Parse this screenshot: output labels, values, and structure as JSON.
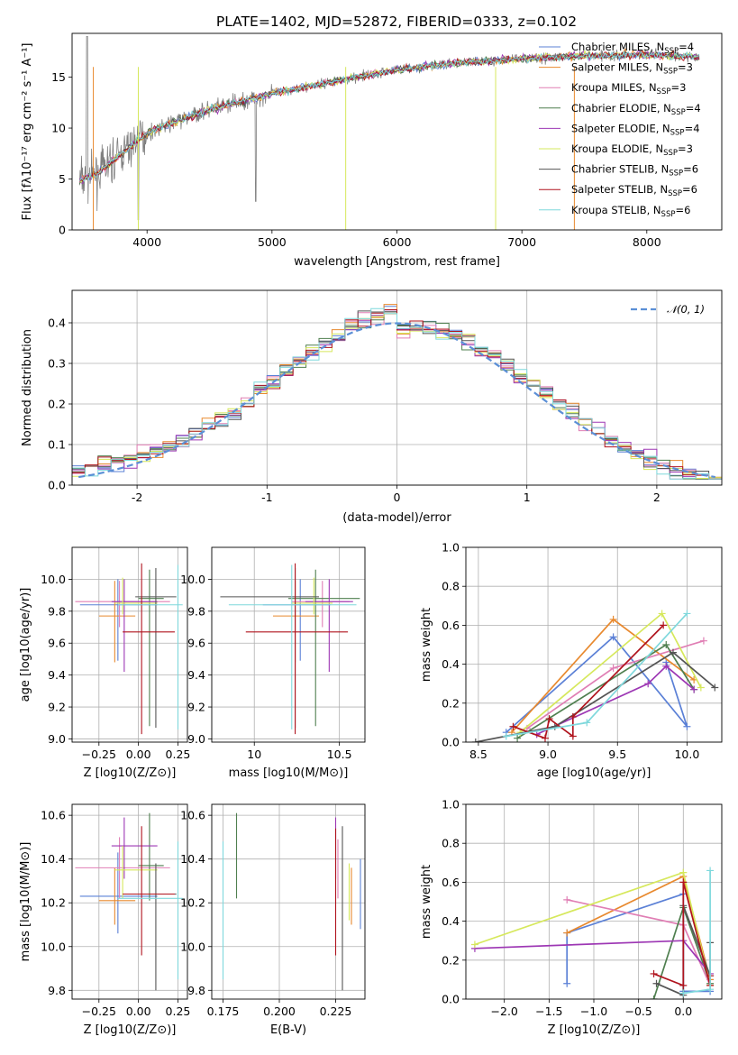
{
  "figure": {
    "title": "PLATE=1402, MJD=52872, FIBERID=0333, z=0.102"
  },
  "models": [
    {
      "name": "Chabrier MILES",
      "nssp": "4",
      "color": "#5b80d6"
    },
    {
      "name": "Salpeter MILES",
      "nssp": "3",
      "color": "#e8892e"
    },
    {
      "name": "Kroupa MILES",
      "nssp": "3",
      "color": "#e07eb4"
    },
    {
      "name": "Chabrier ELODIE",
      "nssp": "4",
      "color": "#4f7f4f"
    },
    {
      "name": "Salpeter ELODIE",
      "nssp": "4",
      "color": "#9d37b4"
    },
    {
      "name": "Kroupa ELODIE",
      "nssp": "3",
      "color": "#d6e85c"
    },
    {
      "name": "Chabrier STELIB",
      "nssp": "6",
      "color": "#555555"
    },
    {
      "name": "Salpeter STELIB",
      "nssp": "6",
      "color": "#b0141e"
    },
    {
      "name": "Kroupa STELIB",
      "nssp": "6",
      "color": "#7fd8dc"
    }
  ],
  "chart_data": [
    {
      "type": "line",
      "name": "spectrum",
      "xlabel": "wavelength [Angstrom, rest frame]",
      "ylabel": "Flux [fλ10⁻¹⁷ erg cm⁻² s⁻¹ A⁻¹]",
      "xlim": [
        3400,
        8600
      ],
      "ylim": [
        0,
        19.3
      ],
      "xticks": [
        4000,
        5000,
        6000,
        7000,
        8000
      ],
      "yticks": [
        0,
        5,
        10,
        15
      ],
      "legend_position": "upper-right",
      "continuum": {
        "x": [
          3450,
          3600,
          3800,
          4000,
          4200,
          4500,
          5000,
          5500,
          6000,
          6500,
          7000,
          7500,
          8000,
          8400
        ],
        "y": [
          4.8,
          5.5,
          7.5,
          9.5,
          10.5,
          11.8,
          13.4,
          14.6,
          15.7,
          16.4,
          16.8,
          17.1,
          17.2,
          17.0
        ]
      }
    },
    {
      "type": "step",
      "name": "residuals",
      "xlabel": "(data-model)/error",
      "ylabel": "Normed distribution",
      "xlim": [
        -2.5,
        2.5
      ],
      "ylim": [
        0,
        0.48
      ],
      "xticks": [
        -2,
        -1,
        0,
        1,
        2
      ],
      "yticks": [
        0.0,
        0.1,
        0.2,
        0.3,
        0.4
      ],
      "legend": "𝒩(0, 1)",
      "legend_position": "upper-right",
      "gaussian": {
        "mean": 0,
        "sigma": 1
      }
    },
    {
      "type": "scatter",
      "name": "age-vs-Z",
      "xlabel": "Z [log10(Z/Z⊙)]",
      "ylabel": "age  [log10(age/yr)]",
      "xlim": [
        -0.42,
        0.31
      ],
      "ylim": [
        8.98,
        10.2
      ],
      "xticks": [
        -0.25,
        0.0,
        0.25
      ],
      "xticklabels": [
        "−0.25",
        "0.00",
        "0.25"
      ],
      "yticks": [
        9.0,
        9.2,
        9.4,
        9.6,
        9.8,
        10.0
      ],
      "points": [
        {
          "m": 0,
          "x": -0.13,
          "xl": -0.37,
          "xh": 0.12,
          "y": 9.84,
          "yl": 9.49,
          "yh": 10.0
        },
        {
          "m": 1,
          "x": -0.15,
          "xl": -0.25,
          "xh": -0.02,
          "y": 9.77,
          "yl": 9.48,
          "yh": 9.99
        },
        {
          "m": 2,
          "x": -0.12,
          "xl": -0.4,
          "xh": 0.2,
          "y": 9.86,
          "yl": 9.7,
          "yh": 9.99
        },
        {
          "m": 3,
          "x": 0.07,
          "xl": 0.0,
          "xh": 0.16,
          "y": 9.88,
          "yl": 9.08,
          "yh": 10.06
        },
        {
          "m": 4,
          "x": -0.09,
          "xl": -0.17,
          "xh": 0.12,
          "y": 9.86,
          "yl": 9.42,
          "yh": 10.0
        },
        {
          "m": 5,
          "x": -0.1,
          "xl": -0.15,
          "xh": 0.12,
          "y": 9.85,
          "yl": 9.78,
          "yh": 10.01
        },
        {
          "m": 6,
          "x": 0.11,
          "xl": -0.02,
          "xh": 0.24,
          "y": 9.89,
          "yl": 9.07,
          "yh": 10.07
        },
        {
          "m": 7,
          "x": 0.02,
          "xl": -0.1,
          "xh": 0.23,
          "y": 9.67,
          "yl": 9.03,
          "yh": 10.1
        },
        {
          "m": 8,
          "x": 0.25,
          "xl": -0.13,
          "xh": 0.28,
          "y": 9.84,
          "yl": 9.06,
          "yh": 10.09
        }
      ]
    },
    {
      "type": "scatter",
      "name": "age-vs-mass",
      "xlabel": "mass [log10(M/M⊙)]",
      "xlim": [
        9.75,
        10.65
      ],
      "ylim": [
        8.98,
        10.2
      ],
      "xticks": [
        10.0,
        10.5
      ],
      "yticks": [
        9.0,
        9.2,
        9.4,
        9.6,
        9.8,
        10.0
      ],
      "points": [
        {
          "m": 0,
          "x": 10.27,
          "xl": 10.05,
          "xh": 10.45,
          "y": 9.84,
          "yl": 9.49,
          "yh": 10.0
        },
        {
          "m": 1,
          "x": 10.24,
          "xl": 10.11,
          "xh": 10.38,
          "y": 9.77,
          "yl": 9.48,
          "yh": 9.99
        },
        {
          "m": 2,
          "x": 10.4,
          "xl": 10.22,
          "xh": 10.56,
          "y": 9.86,
          "yl": 9.7,
          "yh": 9.99
        },
        {
          "m": 3,
          "x": 10.36,
          "xl": 10.2,
          "xh": 10.62,
          "y": 9.88,
          "yl": 9.08,
          "yh": 10.06
        },
        {
          "m": 4,
          "x": 10.44,
          "xl": 10.3,
          "xh": 10.58,
          "y": 9.86,
          "yl": 9.42,
          "yh": 10.0
        },
        {
          "m": 5,
          "x": 10.35,
          "xl": 10.22,
          "xh": 10.46,
          "y": 9.85,
          "yl": 9.78,
          "yh": 10.01
        },
        {
          "m": 6,
          "x": 10.24,
          "xl": 9.8,
          "xh": 10.38,
          "y": 9.89,
          "yl": 9.07,
          "yh": 10.07
        },
        {
          "m": 7,
          "x": 10.24,
          "xl": 9.95,
          "xh": 10.55,
          "y": 9.67,
          "yl": 9.03,
          "yh": 10.1
        },
        {
          "m": 8,
          "x": 10.22,
          "xl": 9.85,
          "xh": 10.6,
          "y": 9.84,
          "yl": 9.06,
          "yh": 10.09
        }
      ]
    },
    {
      "type": "line",
      "name": "weight-vs-age",
      "xlabel": "age  [log10(age/yr)]",
      "ylabel": "mass weight",
      "xlim": [
        8.41,
        10.25
      ],
      "ylim": [
        0,
        1.0
      ],
      "xticks": [
        8.5,
        9.0,
        9.5,
        10.0
      ],
      "yticks": [
        0.0,
        0.2,
        0.4,
        0.6,
        0.8,
        1.0
      ],
      "series": [
        {
          "m": 0,
          "x": [
            8.7,
            9.47,
            10.0,
            9.85
          ],
          "y": [
            0.05,
            0.54,
            0.08,
            0.41
          ]
        },
        {
          "m": 1,
          "x": [
            8.74,
            9.47,
            10.05
          ],
          "y": [
            0.05,
            0.63,
            0.32
          ]
        },
        {
          "m": 2,
          "x": [
            8.85,
            9.47,
            10.12
          ],
          "y": [
            0.07,
            0.38,
            0.52
          ]
        },
        {
          "m": 3,
          "x": [
            8.78,
            9.85,
            10.05
          ],
          "y": [
            0.02,
            0.5,
            0.27
          ]
        },
        {
          "m": 4,
          "x": [
            8.92,
            9.72,
            9.85,
            10.05
          ],
          "y": [
            0.04,
            0.3,
            0.39,
            0.27
          ]
        },
        {
          "m": 5,
          "x": [
            8.8,
            9.82,
            10.1
          ],
          "y": [
            0.05,
            0.66,
            0.28
          ]
        },
        {
          "m": 6,
          "x": [
            8.48,
            9.05,
            9.9,
            10.2
          ],
          "y": [
            0.0,
            0.08,
            0.46,
            0.28
          ]
        },
        {
          "m": 7,
          "x": [
            8.75,
            8.98,
            9.01,
            9.18,
            9.18,
            9.83
          ],
          "y": [
            0.08,
            0.02,
            0.12,
            0.03,
            0.13,
            0.6
          ]
        },
        {
          "m": 8,
          "x": [
            8.7,
            9.28,
            10.0
          ],
          "y": [
            0.03,
            0.1,
            0.66
          ]
        }
      ]
    },
    {
      "type": "scatter",
      "name": "mass-vs-Z",
      "xlabel": "Z [log10(Z/Z⊙)]",
      "ylabel": "mass [log10(M/M⊙)]",
      "xlim": [
        -0.42,
        0.31
      ],
      "ylim": [
        9.76,
        10.65
      ],
      "xticks": [
        -0.25,
        0.0,
        0.25
      ],
      "xticklabels": [
        "−0.25",
        "0.00",
        "0.25"
      ],
      "yticks": [
        9.8,
        10.0,
        10.2,
        10.4,
        10.6
      ],
      "points": [
        {
          "m": 0,
          "x": -0.13,
          "xl": -0.37,
          "xh": 0.12,
          "y": 10.23,
          "yl": 10.06,
          "yh": 10.43
        },
        {
          "m": 1,
          "x": -0.15,
          "xl": -0.25,
          "xh": -0.02,
          "y": 10.21,
          "yl": 10.1,
          "yh": 10.36
        },
        {
          "m": 2,
          "x": -0.12,
          "xl": -0.4,
          "xh": 0.2,
          "y": 10.36,
          "yl": 10.22,
          "yh": 10.5
        },
        {
          "m": 3,
          "x": 0.07,
          "xl": 0.0,
          "xh": 0.16,
          "y": 10.37,
          "yl": 10.21,
          "yh": 10.61
        },
        {
          "m": 4,
          "x": -0.09,
          "xl": -0.17,
          "xh": 0.12,
          "y": 10.46,
          "yl": 10.31,
          "yh": 10.59
        },
        {
          "m": 5,
          "x": -0.1,
          "xl": -0.15,
          "xh": 0.12,
          "y": 10.35,
          "yl": 10.22,
          "yh": 10.46
        },
        {
          "m": 6,
          "x": 0.11,
          "xl": -0.02,
          "xh": 0.24,
          "y": 10.24,
          "yl": 9.8,
          "yh": 10.38
        },
        {
          "m": 7,
          "x": 0.02,
          "xl": -0.1,
          "xh": 0.23,
          "y": 10.24,
          "yl": 9.96,
          "yh": 10.55
        },
        {
          "m": 8,
          "x": 0.25,
          "xl": -0.13,
          "xh": 0.28,
          "y": 10.22,
          "yl": 9.85,
          "yh": 10.48
        }
      ]
    },
    {
      "type": "scatter",
      "name": "mass-vs-EBV",
      "xlabel": "E(B-V)",
      "xlim": [
        0.17,
        0.238
      ],
      "ylim": [
        9.76,
        10.65
      ],
      "xticks": [
        0.175,
        0.2,
        0.225
      ],
      "xticklabels": [
        "0.175",
        "0.200",
        "0.225"
      ],
      "yticks": [
        9.8,
        10.0,
        10.2,
        10.4,
        10.6
      ],
      "points": [
        {
          "m": 0,
          "x": 0.236,
          "xl": 0.236,
          "xh": 0.236,
          "y": 10.25,
          "yl": 10.08,
          "yh": 10.4
        },
        {
          "m": 1,
          "x": 0.232,
          "xl": 0.232,
          "xh": 0.232,
          "y": 10.21,
          "yl": 10.1,
          "yh": 10.36
        },
        {
          "m": 2,
          "x": 0.226,
          "xl": 0.226,
          "xh": 0.226,
          "y": 10.36,
          "yl": 10.22,
          "yh": 10.49
        },
        {
          "m": 3,
          "x": 0.181,
          "xl": 0.181,
          "xh": 0.181,
          "y": 10.41,
          "yl": 10.22,
          "yh": 10.61
        },
        {
          "m": 4,
          "x": 0.225,
          "xl": 0.225,
          "xh": 0.225,
          "y": 10.46,
          "yl": 10.31,
          "yh": 10.59
        },
        {
          "m": 5,
          "x": 0.231,
          "xl": 0.231,
          "xh": 0.231,
          "y": 10.26,
          "yl": 10.12,
          "yh": 10.38
        },
        {
          "m": 6,
          "x": 0.228,
          "xl": 0.228,
          "xh": 0.228,
          "y": 10.22,
          "yl": 9.8,
          "yh": 10.55
        },
        {
          "m": 7,
          "x": 0.225,
          "xl": 0.225,
          "xh": 0.225,
          "y": 10.24,
          "yl": 9.96,
          "yh": 10.54
        },
        {
          "m": 8,
          "x": 0.175,
          "xl": 0.175,
          "xh": 0.175,
          "y": 10.18,
          "yl": 9.85,
          "yh": 10.48
        }
      ]
    },
    {
      "type": "line",
      "name": "weight-vs-Z",
      "xlabel": "Z [log10(Z/Z⊙)]",
      "ylabel": "mass weight",
      "xlim": [
        -2.43,
        0.43
      ],
      "ylim": [
        0,
        1.0
      ],
      "xticks": [
        -2.0,
        -1.5,
        -1.0,
        -0.5,
        0.0
      ],
      "xticklabels": [
        "−2.0",
        "−1.5",
        "−1.0",
        "−0.5",
        "0.0"
      ],
      "yticks": [
        0.0,
        0.2,
        0.4,
        0.6,
        0.8,
        1.0
      ],
      "series": [
        {
          "m": 0,
          "x": [
            -1.3,
            -1.3,
            0.0,
            0.0,
            0.3
          ],
          "y": [
            0.08,
            0.34,
            0.54,
            0.04,
            0.04
          ]
        },
        {
          "m": 1,
          "x": [
            -1.3,
            0.0,
            0.3
          ],
          "y": [
            0.34,
            0.63,
            0.1
          ]
        },
        {
          "m": 2,
          "x": [
            -1.3,
            0.0,
            0.3
          ],
          "y": [
            0.51,
            0.38,
            0.07
          ]
        },
        {
          "m": 3,
          "x": [
            -0.33,
            0.0,
            0.3
          ],
          "y": [
            0.0,
            0.47,
            0.08
          ]
        },
        {
          "m": 4,
          "x": [
            -2.33,
            0.0,
            0.3
          ],
          "y": [
            0.26,
            0.3,
            0.13
          ]
        },
        {
          "m": 5,
          "x": [
            -2.33,
            0.0,
            0.3
          ],
          "y": [
            0.28,
            0.65,
            0.07
          ]
        },
        {
          "m": 6,
          "x": [
            -0.3,
            0.0,
            0.0,
            0.3,
            0.3
          ],
          "y": [
            0.08,
            0.02,
            0.48,
            0.12,
            0.29
          ]
        },
        {
          "m": 7,
          "x": [
            -0.33,
            0.0,
            0.0,
            0.3,
            0.3
          ],
          "y": [
            0.13,
            0.07,
            0.6,
            0.07,
            0.12
          ]
        },
        {
          "m": 8,
          "x": [
            0.0,
            0.3,
            0.3
          ],
          "y": [
            0.03,
            0.05,
            0.66
          ]
        }
      ]
    }
  ]
}
